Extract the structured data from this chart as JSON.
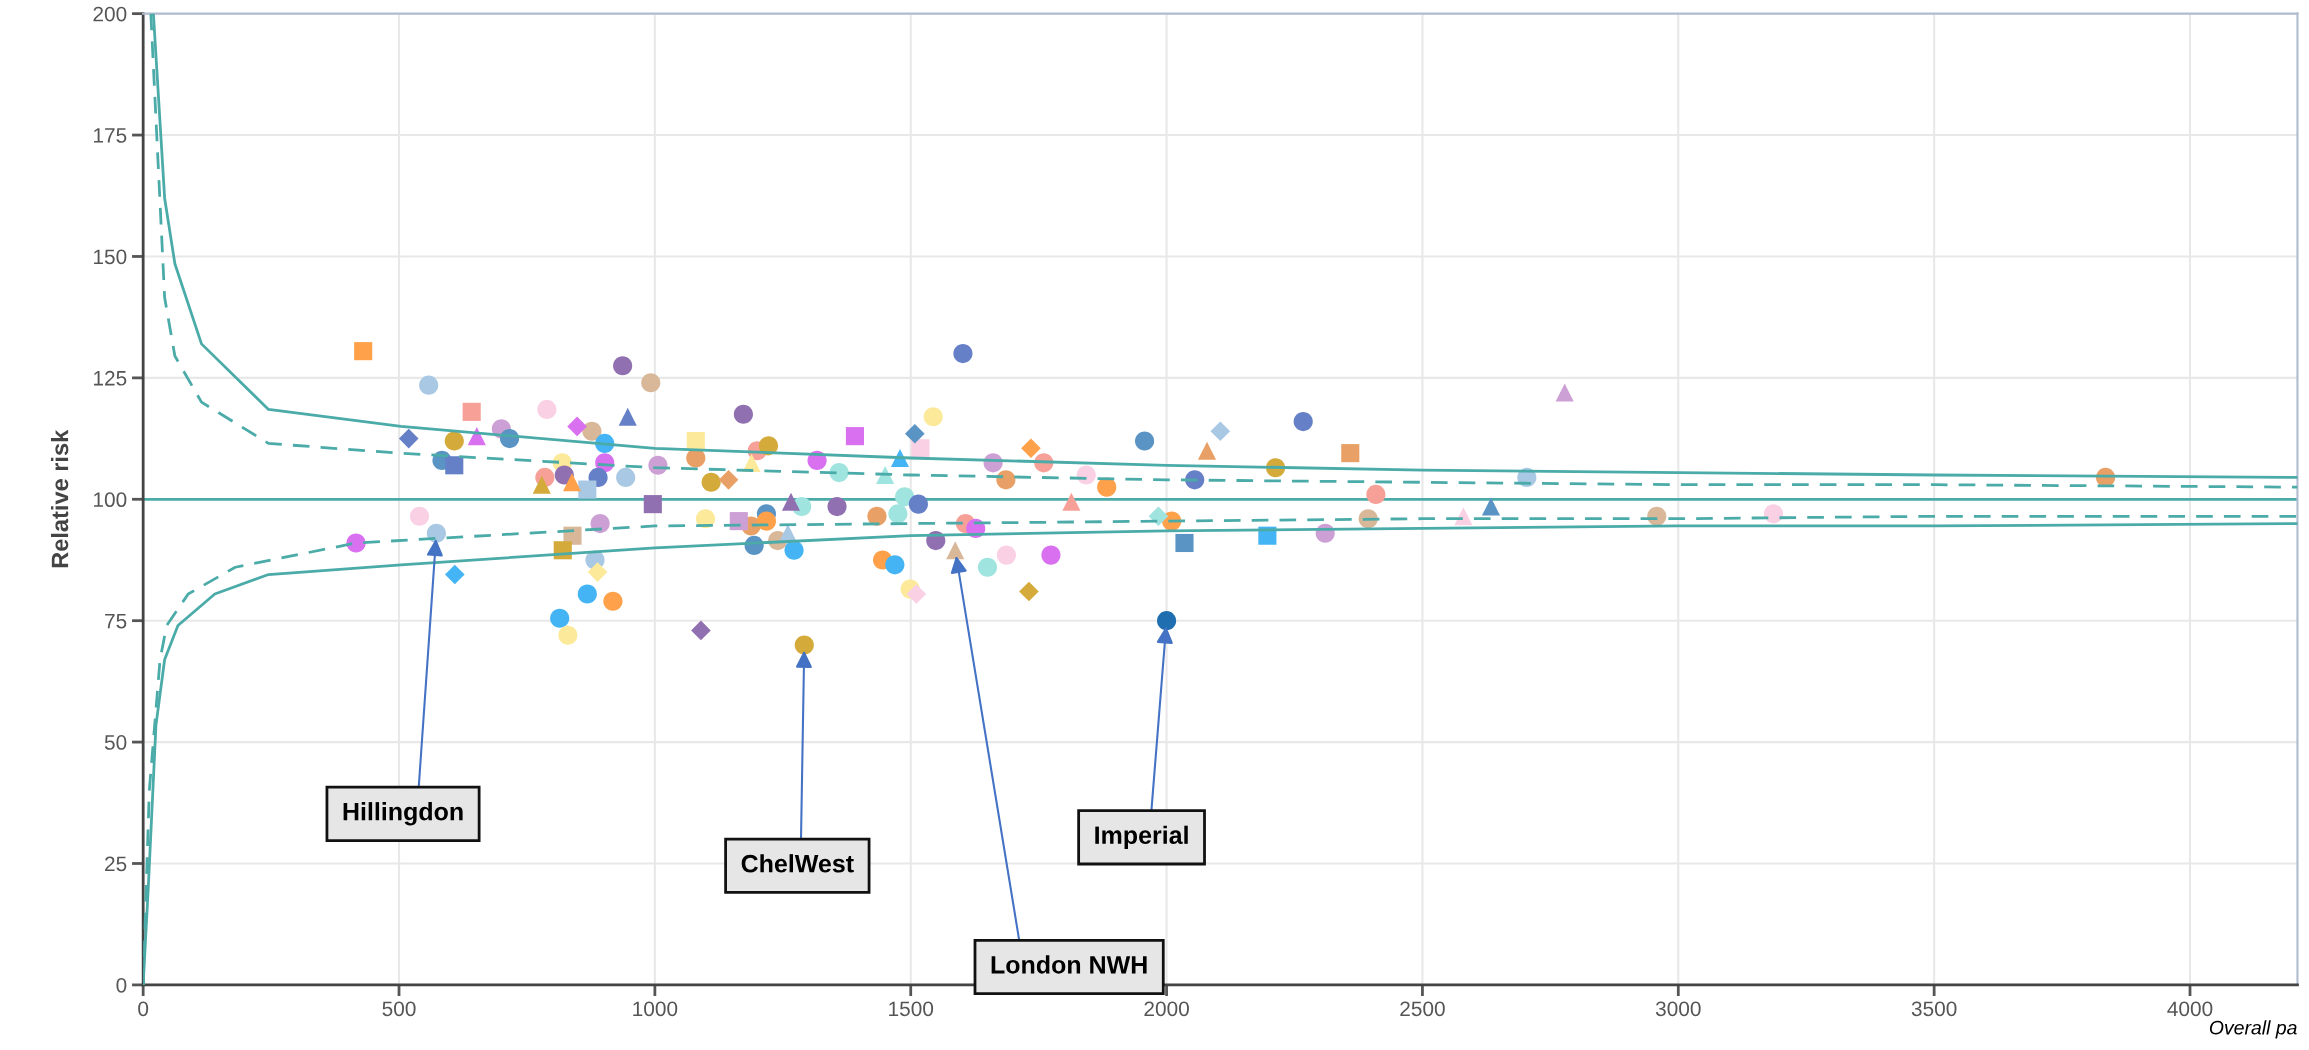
{
  "chart_data": {
    "type": "scatter",
    "ylabel": "Relative risk",
    "xlabel": "Overall pa",
    "xlim": [
      0,
      4210
    ],
    "xticks": [
      0,
      500,
      1000,
      1500,
      2000,
      2500,
      3000,
      3500,
      4000
    ],
    "ylim": [
      0,
      200
    ],
    "yticks": [
      0,
      25,
      50,
      75,
      100,
      125,
      150,
      175,
      200
    ],
    "grid": true,
    "legend": false,
    "ref_lines": [
      {
        "axis": "y",
        "value": 100,
        "color": "#4aaba8",
        "line_style": "solid"
      }
    ],
    "annotations": [
      {
        "text": "Hillingdon",
        "x": 573,
        "y": 93
      },
      {
        "text": "ChelWest",
        "x": 1292,
        "y": 70
      },
      {
        "text": "Imperial",
        "x": 2000,
        "y": 75
      },
      {
        "text": "London NWH",
        "x": 1587,
        "y": 89.5
      }
    ],
    "series": [
      {
        "type": "line",
        "color": "#4aaba8",
        "line_style": "solid",
        "marker": "none",
        "x": [
          20,
          42,
          62,
          114,
          245,
          504,
          1000,
          1500,
          2000,
          2500,
          3000,
          3500,
          4210
        ],
        "values": [
          200,
          162,
          148.5,
          132,
          118.5,
          115,
          110.5,
          108.5,
          107,
          106,
          105.5,
          105,
          104.5
        ]
      },
      {
        "type": "line",
        "color": "#4aaba8",
        "line_style": "dashed",
        "marker": "none",
        "x": [
          15,
          42,
          62,
          114,
          245,
          500,
          1000,
          1500,
          2000,
          2500,
          3000,
          3500,
          4210
        ],
        "values": [
          200,
          141.5,
          129.5,
          120,
          111.5,
          109.5,
          106.5,
          105,
          104,
          103.5,
          103,
          103,
          102.5
        ]
      },
      {
        "type": "line",
        "color": "#4aaba8",
        "line_style": "solid",
        "marker": "none",
        "x": [
          0,
          10,
          25,
          42,
          68,
          140,
          245,
          504,
          1000,
          1500,
          2000,
          2500,
          3000,
          3500,
          4210
        ],
        "values": [
          0,
          20,
          53.5,
          67,
          74,
          80.5,
          84.5,
          86.5,
          90,
          92.5,
          93.5,
          94,
          94.5,
          94.5,
          95
        ]
      },
      {
        "type": "line",
        "color": "#4aaba8",
        "line_style": "dashed",
        "marker": "none",
        "x": [
          0,
          12,
          33,
          46,
          88,
          180,
          416,
          1000,
          1500,
          2000,
          2500,
          3000,
          3500,
          4210
        ],
        "values": [
          0,
          40,
          67,
          74,
          80.5,
          86,
          91,
          94.5,
          95,
          95.5,
          96,
          96,
          96.5,
          96.5
        ]
      },
      {
        "marker": "circle",
        "x": [
          558,
          937,
          992,
          789,
          1173,
          608,
          700,
          716,
          877,
          902,
          1200,
          1222,
          1317,
          584,
          819,
          902,
          785,
          823,
          889,
          943,
          1006,
          1080,
          1110,
          1360,
          1287,
          1356,
          540,
          573,
          416,
          893,
          1099,
          1218,
          1188,
          1218,
          1240,
          1194,
          1272,
          883,
          868,
          918,
          814,
          830,
          1292,
          1602,
          1544,
          1661,
          1760,
          1686,
          1843,
          1883,
          1957,
          2267,
          2055,
          2213,
          2704,
          1488,
          1515,
          1434,
          1475,
          1607,
          1627,
          1549,
          1445,
          1469,
          1650,
          1687,
          1774,
          1499,
          2010,
          2310,
          2394,
          2409,
          2958,
          3186,
          3835
        ],
        "values": [
          123.5,
          127.5,
          124,
          118.5,
          117.5,
          112,
          114.5,
          112.5,
          114,
          111.5,
          110,
          111,
          108,
          108,
          107.5,
          107.5,
          104.5,
          105,
          104.5,
          104.5,
          107,
          108.5,
          103.5,
          105.5,
          98.5,
          98.5,
          96.5,
          93,
          91,
          95,
          96,
          97,
          94.5,
          95.5,
          91.5,
          90.5,
          89.5,
          87.5,
          80.5,
          79,
          75.5,
          72,
          70,
          130,
          117,
          107.5,
          107.5,
          104,
          105,
          102.5,
          112,
          116,
          104,
          106.5,
          104.5,
          100.5,
          99,
          96.5,
          97,
          95,
          94,
          91.5,
          87.5,
          86.5,
          86,
          88.5,
          88.5,
          81.5,
          95.5,
          93,
          96,
          101,
          96.5,
          97,
          104.5
        ],
        "colors": [
          "#a8c8e4",
          "#9070b0",
          "#d8b898",
          "#fad0e4",
          "#9070b0",
          "#d4aa3a",
          "#cca0d4",
          "#5a94c4",
          "#d8b898",
          "#44b4f4",
          "#f7a097",
          "#d4aa3a",
          "#d870f0",
          "#5a94c4",
          "#fde99a",
          "#d870f0",
          "#f7a097",
          "#9070b0",
          "#6680c8",
          "#a8c8e4",
          "#cca0d4",
          "#e8a066",
          "#d4aa3a",
          "#a0e4e0",
          "#a0e4e0",
          "#9070b0",
          "#fad0e4",
          "#a8c8e4",
          "#d870f0",
          "#cca0d4",
          "#fde99a",
          "#5a94c4",
          "#e8a066",
          "#ffa04a",
          "#d8b898",
          "#5a94c4",
          "#44b4f4",
          "#a8c8e4",
          "#44b4f4",
          "#ffa04a",
          "#44b4f4",
          "#fde99a",
          "#d4aa3a",
          "#6680c8",
          "#fde99a",
          "#cca0d4",
          "#f7a097",
          "#e8a066",
          "#fad0e4",
          "#ffa04a",
          "#5a94c4",
          "#6680c8",
          "#6680c8",
          "#d4aa3a",
          "#a8c8e4",
          "#a0e4e0",
          "#6680c8",
          "#e8a066",
          "#a0e4e0",
          "#f7a097",
          "#d870f0",
          "#9070b0",
          "#ffa04a",
          "#44b4f4",
          "#a0e4e0",
          "#fad0e4",
          "#d870f0",
          "#fde99a",
          "#ffa04a",
          "#cca0d4",
          "#d8b898",
          "#f7a097",
          "#d8b898",
          "#fad0e4",
          "#e8a066"
        ]
      },
      {
        "marker": "square",
        "x": [
          430,
          642,
          1080,
          608,
          868,
          996,
          839,
          820,
          1164,
          1519,
          1391,
          2359,
          2035,
          2197
        ],
        "values": [
          130.5,
          118,
          112,
          107,
          102,
          99,
          92.5,
          89.5,
          95.5,
          110.5,
          113,
          109.5,
          91,
          92.5
        ],
        "colors": [
          "#ffa04a",
          "#f7a097",
          "#fde99a",
          "#6680c8",
          "#a8c8e4",
          "#9070b0",
          "#d8b898",
          "#d4aa3a",
          "#cca0d4",
          "#fad0e4",
          "#d870f0",
          "#e8a066",
          "#5a94c4",
          "#44b4f4"
        ]
      },
      {
        "marker": "triangle",
        "x": [
          947,
          652,
          838,
          779,
          1189,
          1266,
          1260,
          1479,
          1450,
          1814,
          2079,
          2778,
          1587,
          2580,
          2634
        ],
        "values": [
          117,
          113,
          103.5,
          103,
          107.5,
          99.5,
          93,
          108.5,
          105,
          99.5,
          110,
          122,
          89.5,
          96.5,
          98.5
        ],
        "colors": [
          "#6680c8",
          "#d870f0",
          "#ffa04a",
          "#d4aa3a",
          "#fde99a",
          "#9070b0",
          "#a8c8e4",
          "#44b4f4",
          "#a0e4e0",
          "#f7a097",
          "#e8a066",
          "#cca0d4",
          "#d8b898",
          "#fad0e4",
          "#5a94c4"
        ]
      },
      {
        "marker": "diamond",
        "x": [
          519,
          848,
          1144,
          888,
          609,
          1090,
          1508,
          1735,
          2105,
          1511,
          1731,
          1984
        ],
        "values": [
          112.5,
          115,
          104,
          85,
          84.5,
          73,
          113.5,
          110.5,
          114,
          80.5,
          81,
          96.5
        ],
        "colors": [
          "#6680c8",
          "#d870f0",
          "#e8a066",
          "#fde99a",
          "#44b4f4",
          "#9070b0",
          "#5a94c4",
          "#ffa04a",
          "#a8c8e4",
          "#fad0e4",
          "#d4aa3a",
          "#a0e4e0"
        ]
      },
      {
        "marker": "circle",
        "x": [
          2000
        ],
        "values": [
          75
        ],
        "colors": [
          "#1f6fb0"
        ]
      }
    ]
  }
}
